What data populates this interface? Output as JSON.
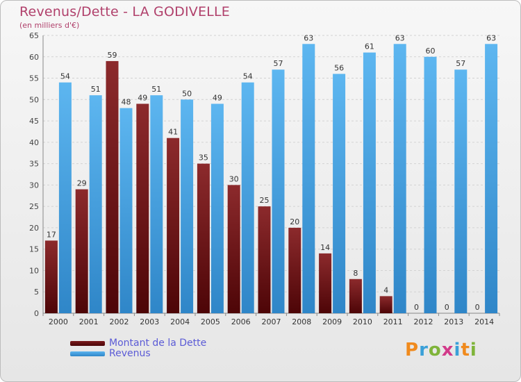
{
  "chart_data": {
    "type": "bar",
    "title": "Revenus/Dette - LA GODIVELLE",
    "subtitle": "(en milliers d'€)",
    "categories": [
      "2000",
      "2001",
      "2002",
      "2003",
      "2004",
      "2005",
      "2006",
      "2007",
      "2008",
      "2009",
      "2010",
      "2011",
      "2012",
      "2013",
      "2014"
    ],
    "series": [
      {
        "name": "Montant de la Dette",
        "values": [
          17,
          29,
          59,
          49,
          41,
          35,
          30,
          25,
          20,
          14,
          8,
          4,
          0,
          0,
          0
        ],
        "color": "#7a1a1c"
      },
      {
        "name": "Revenus",
        "values": [
          54,
          51,
          48,
          51,
          50,
          49,
          54,
          57,
          63,
          56,
          61,
          63,
          60,
          57,
          63
        ],
        "color": "#4aa3e3"
      }
    ],
    "ylim": [
      0,
      65
    ],
    "yticks": [
      0,
      5,
      10,
      15,
      20,
      25,
      30,
      35,
      40,
      45,
      50,
      55,
      60,
      65
    ],
    "grid": true,
    "legend_position": "bottom-left"
  },
  "legend": {
    "debt_label": "Montant de la Dette",
    "revenue_label": "Revenus",
    "debt_color": "#7a1a1c",
    "revenue_color": "#4aa3e3"
  },
  "logo": {
    "text": "Proxiti"
  }
}
